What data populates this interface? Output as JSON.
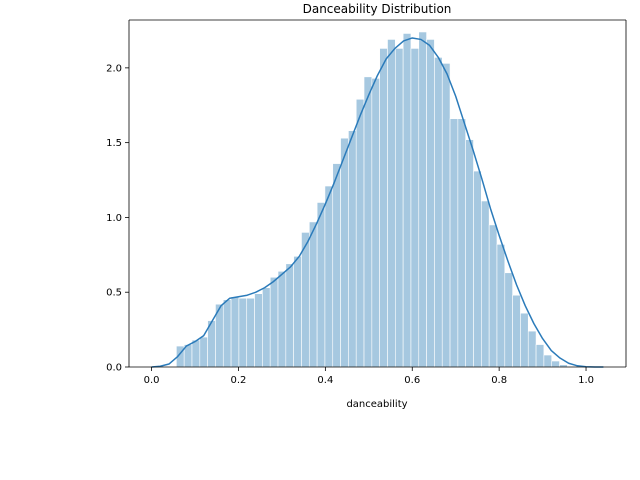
{
  "chart_data": {
    "type": "histogram",
    "title": "Danceability Distribution",
    "xlabel": "danceability",
    "ylabel": "",
    "xlim": [
      -0.052,
      1.092
    ],
    "ylim": [
      0,
      2.32
    ],
    "xticks": [
      0.0,
      0.2,
      0.4,
      0.6,
      0.8,
      1.0
    ],
    "xtick_labels": [
      "0.0",
      "0.2",
      "0.4",
      "0.6",
      "0.8",
      "1.0"
    ],
    "yticks": [
      0.0,
      0.5,
      1.0,
      1.5,
      2.0
    ],
    "ytick_labels": [
      "0.0",
      "0.5",
      "1.0",
      "1.5",
      "2.0"
    ],
    "grid": false,
    "legend": "none",
    "bar_color": "#a6c8e0",
    "line_color": "#2b7bba",
    "histogram": {
      "bin_edges": [
        0.057,
        0.075,
        0.093,
        0.111,
        0.129,
        0.147,
        0.165,
        0.183,
        0.201,
        0.219,
        0.237,
        0.255,
        0.273,
        0.291,
        0.309,
        0.327,
        0.345,
        0.363,
        0.381,
        0.399,
        0.417,
        0.435,
        0.453,
        0.471,
        0.489,
        0.507,
        0.525,
        0.543,
        0.561,
        0.579,
        0.597,
        0.615,
        0.633,
        0.651,
        0.669,
        0.687,
        0.705,
        0.723,
        0.741,
        0.759,
        0.777,
        0.795,
        0.813,
        0.831,
        0.849,
        0.867,
        0.885,
        0.903,
        0.921,
        0.939,
        0.957,
        0.975
      ],
      "densities": [
        0.14,
        0.15,
        0.18,
        0.2,
        0.31,
        0.42,
        0.45,
        0.47,
        0.46,
        0.46,
        0.49,
        0.53,
        0.6,
        0.64,
        0.69,
        0.74,
        0.9,
        0.97,
        1.1,
        1.21,
        1.36,
        1.53,
        1.58,
        1.79,
        1.94,
        1.93,
        2.13,
        2.19,
        2.13,
        2.23,
        2.13,
        2.24,
        2.19,
        2.07,
        2.03,
        1.66,
        1.66,
        1.52,
        1.31,
        1.11,
        0.95,
        0.82,
        0.63,
        0.48,
        0.36,
        0.24,
        0.15,
        0.08,
        0.04,
        0.015,
        0.0
      ]
    },
    "kde": {
      "x": [
        0.0,
        0.02,
        0.04,
        0.06,
        0.08,
        0.1,
        0.12,
        0.14,
        0.16,
        0.18,
        0.2,
        0.22,
        0.24,
        0.26,
        0.28,
        0.3,
        0.32,
        0.34,
        0.36,
        0.38,
        0.4,
        0.42,
        0.44,
        0.46,
        0.48,
        0.5,
        0.52,
        0.54,
        0.56,
        0.58,
        0.6,
        0.62,
        0.64,
        0.66,
        0.68,
        0.7,
        0.72,
        0.74,
        0.76,
        0.78,
        0.8,
        0.82,
        0.84,
        0.86,
        0.88,
        0.9,
        0.92,
        0.94,
        0.96,
        0.98,
        1.0,
        1.02,
        1.04
      ],
      "y": [
        0.0,
        0.005,
        0.02,
        0.07,
        0.14,
        0.17,
        0.21,
        0.31,
        0.41,
        0.46,
        0.47,
        0.48,
        0.5,
        0.53,
        0.57,
        0.62,
        0.67,
        0.74,
        0.84,
        0.96,
        1.09,
        1.23,
        1.38,
        1.53,
        1.68,
        1.82,
        1.95,
        2.06,
        2.13,
        2.18,
        2.2,
        2.19,
        2.15,
        2.07,
        1.96,
        1.81,
        1.63,
        1.45,
        1.26,
        1.06,
        0.88,
        0.71,
        0.55,
        0.41,
        0.29,
        0.19,
        0.11,
        0.06,
        0.025,
        0.008,
        0.002,
        0.0,
        0.0
      ]
    }
  }
}
